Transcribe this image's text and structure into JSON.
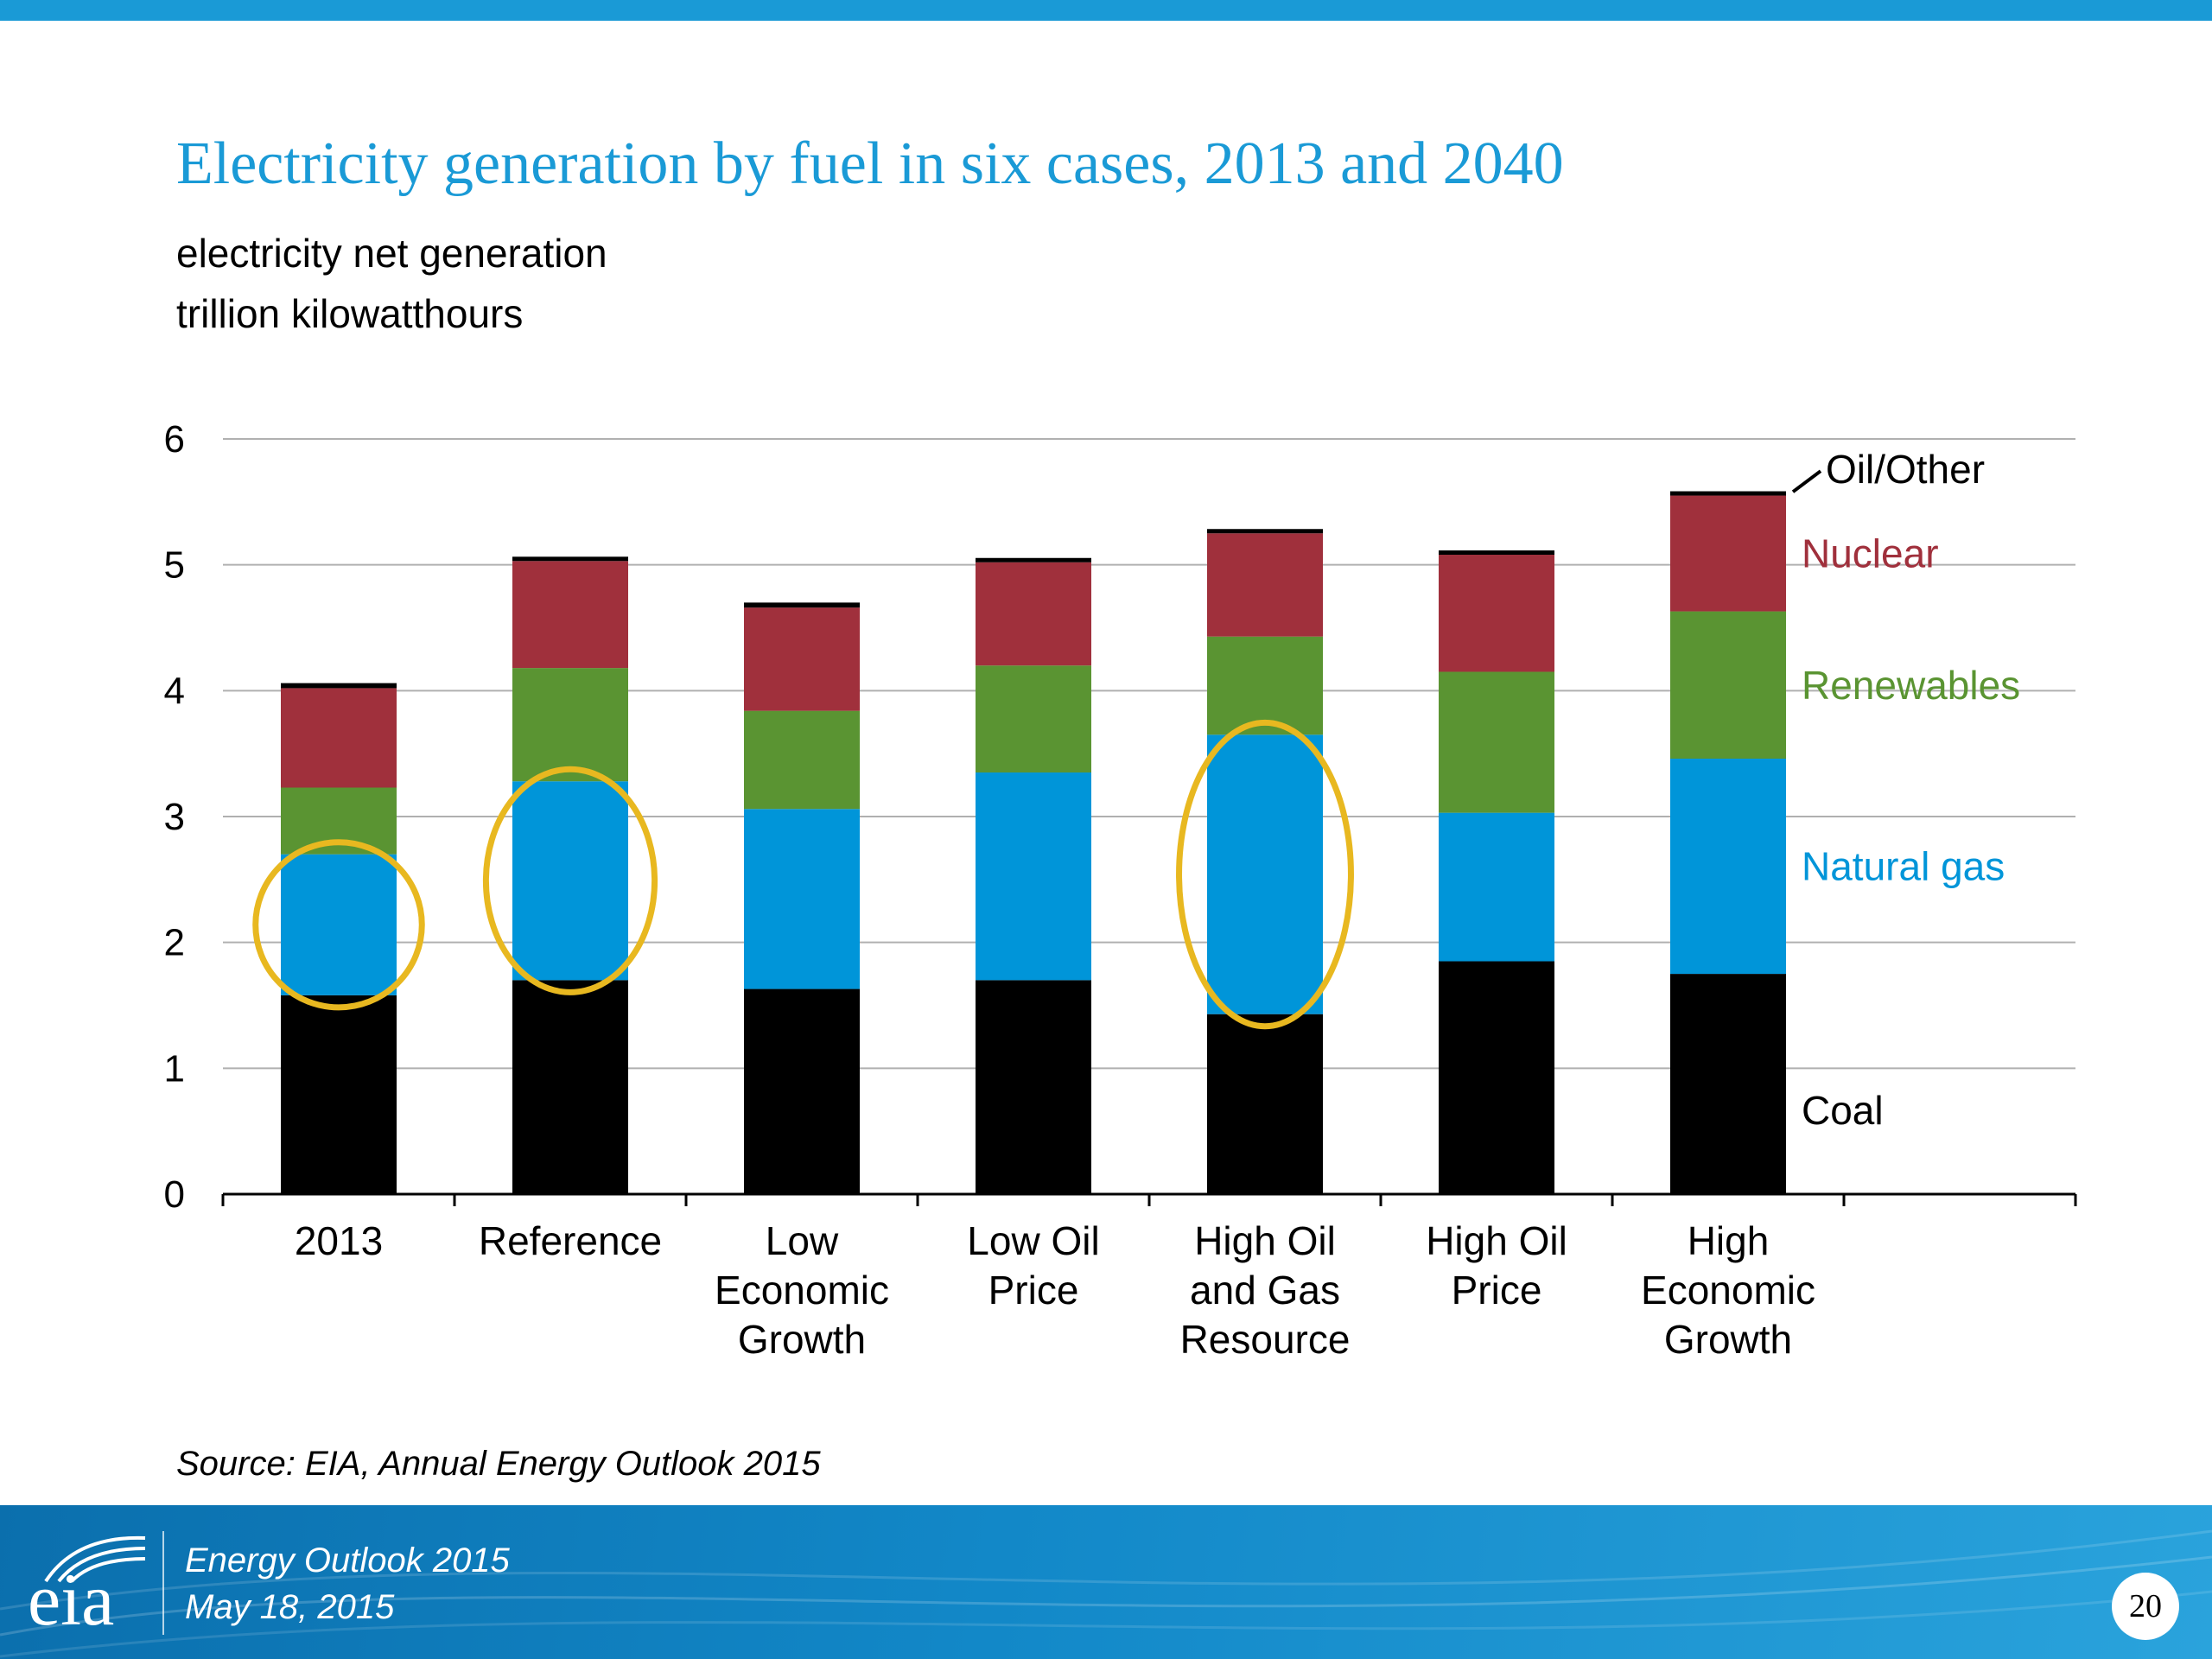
{
  "slide": {
    "title": "Electricity generation by fuel in six cases, 2013 and 2040",
    "subtitle_line1": "electricity net generation",
    "subtitle_line2": "trillion kilowatthours",
    "source": "Source:  EIA, Annual Energy Outlook 2015",
    "footer_line1": "Energy  Outlook 2015",
    "footer_line2": "May 18, 2015",
    "page_number": "20",
    "logo_text": "eia"
  },
  "colors": {
    "accent": "#1a9ad6",
    "coal": "#000000",
    "natural_gas": "#0095d9",
    "renewables": "#5a9432",
    "nuclear": "#a0303c",
    "oil_other": "#000000",
    "highlight_ellipse": "#e8b820"
  },
  "chart_data": {
    "type": "bar",
    "stacked": true,
    "categories": [
      [
        "2013"
      ],
      [
        "Reference"
      ],
      [
        "Low",
        "Economic",
        "Growth"
      ],
      [
        "Low Oil",
        "Price"
      ],
      [
        "High Oil",
        "and Gas",
        "Resource"
      ],
      [
        "High Oil",
        "Price"
      ],
      [
        "High",
        "Economic",
        "Growth"
      ]
    ],
    "series": [
      {
        "name": "Coal",
        "label_color": "#000000",
        "values": [
          1.58,
          1.7,
          1.63,
          1.7,
          1.43,
          1.85,
          1.75
        ]
      },
      {
        "name": "Natural gas",
        "label_color": "#0095d9",
        "values": [
          1.12,
          1.58,
          1.43,
          1.65,
          2.22,
          1.18,
          1.71
        ]
      },
      {
        "name": "Renewables",
        "label_color": "#5a9432",
        "values": [
          0.53,
          0.9,
          0.78,
          0.85,
          0.78,
          1.12,
          1.17
        ]
      },
      {
        "name": "Nuclear",
        "label_color": "#a0303c",
        "values": [
          0.79,
          0.85,
          0.82,
          0.82,
          0.82,
          0.93,
          0.92
        ]
      },
      {
        "name": "Oil/Other",
        "label_color": "#000000",
        "values": [
          0.04,
          0.03,
          0.04,
          0.03,
          0.03,
          0.03,
          0.03
        ]
      }
    ],
    "ylim": [
      0,
      6
    ],
    "yticks": [
      0,
      1,
      2,
      3,
      4,
      5,
      6
    ],
    "grid": true,
    "legend": "labels beside last bar (right)",
    "highlighted_segments": [
      {
        "category_index": 0,
        "series": "Natural gas"
      },
      {
        "category_index": 1,
        "series": "Natural gas"
      },
      {
        "category_index": 4,
        "series": "Natural gas"
      }
    ]
  }
}
